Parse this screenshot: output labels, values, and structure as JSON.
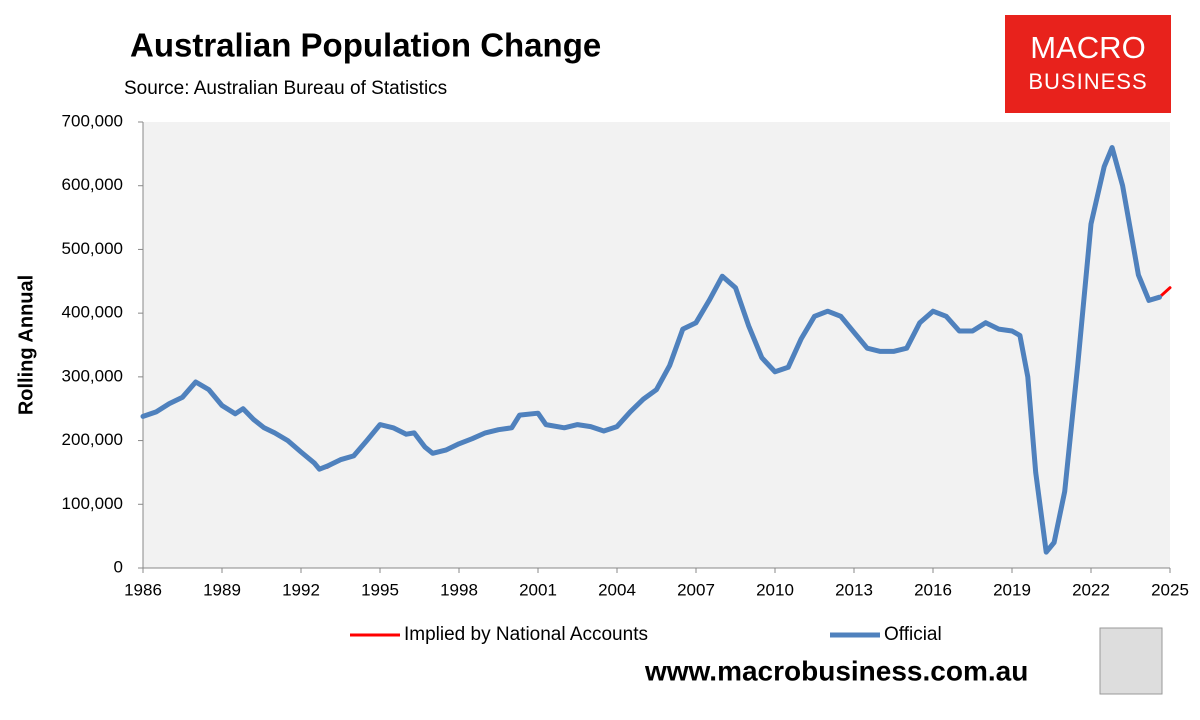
{
  "chart_data": {
    "type": "line",
    "title": "Australian Population Change",
    "subtitle": "Source: Australian Bureau of Statistics",
    "y_label": "Rolling Annual",
    "logo": [
      "MACRO",
      "BUSINESS"
    ],
    "footer": "www.macrobusiness.com.au",
    "legend": "bottom",
    "grid": false,
    "xlim": [
      1986,
      2025
    ],
    "xticks": [
      1986,
      1989,
      1992,
      1995,
      1998,
      2001,
      2004,
      2007,
      2010,
      2013,
      2016,
      2019,
      2022,
      2025
    ],
    "ylim": [
      0,
      700000
    ],
    "yticks": [
      0,
      {
        "value": 100000,
        "label": "100,000"
      },
      {
        "value": 200000,
        "label": "200,000"
      },
      {
        "value": 300000,
        "label": "300,000"
      },
      {
        "value": 400000,
        "label": "400,000"
      },
      {
        "value": 500000,
        "label": "500,000"
      },
      {
        "value": 600000,
        "label": "600,000"
      },
      {
        "value": 700000,
        "label": "700,000"
      }
    ],
    "x": [
      1986,
      1986.5,
      1987,
      1987.5,
      1988,
      1988.5,
      1989,
      1989.5,
      1989.8,
      1990.2,
      1990.6,
      1991,
      1991.5,
      1992,
      1992.5,
      1992.7,
      1993,
      1993.5,
      1994,
      1994.5,
      1995,
      1995.5,
      1996,
      1996.3,
      1996.7,
      1997,
      1997.5,
      1998,
      1998.5,
      1999,
      1999.5,
      2000,
      2000.3,
      2001,
      2001.3,
      2002,
      2002.5,
      2003,
      2003.5,
      2004,
      2004.5,
      2005,
      2005.5,
      2006,
      2006.5,
      2007,
      2007.5,
      2008,
      2008.5,
      2009,
      2009.5,
      2010,
      2010.5,
      2011,
      2011.5,
      2012,
      2012.5,
      2013,
      2013.5,
      2014,
      2014.5,
      2015,
      2015.5,
      2016,
      2016.5,
      2017,
      2017.5,
      2018,
      2018.5,
      2019,
      2019.3,
      2019.6,
      2019.9,
      2020.3,
      2020.6,
      2021,
      2021.5,
      2022,
      2022.5,
      2022.8,
      2023.2,
      2023.8,
      2024.2,
      2024.6,
      2025
    ],
    "series": [
      {
        "name": "Implied by National Accounts",
        "color": "#ff0000",
        "width": 3,
        "values": [
          238000,
          245000,
          258000,
          268000,
          292000,
          280000,
          255000,
          242000,
          250000,
          233000,
          220000,
          212000,
          200000,
          182000,
          165000,
          155000,
          158000,
          170000,
          176000,
          200000,
          225000,
          220000,
          210000,
          212000,
          190000,
          180000,
          185000,
          195000,
          203000,
          212000,
          217000,
          220000,
          240000,
          243000,
          225000,
          220000,
          225000,
          222000,
          215000,
          222000,
          245000,
          265000,
          280000,
          318000,
          375000,
          385000,
          420000,
          458000,
          440000,
          380000,
          330000,
          308000,
          315000,
          360000,
          395000,
          403000,
          395000,
          370000,
          345000,
          340000,
          340000,
          345000,
          385000,
          403000,
          395000,
          372000,
          372000,
          385000,
          375000,
          372000,
          365000,
          300000,
          150000,
          25000,
          40000,
          120000,
          320000,
          540000,
          630000,
          660000,
          600000,
          460000,
          420000,
          425000,
          440000
        ]
      },
      {
        "name": "Official",
        "color": "#4f81bd",
        "width": 5,
        "values": [
          238000,
          245000,
          258000,
          268000,
          292000,
          280000,
          255000,
          242000,
          250000,
          233000,
          220000,
          212000,
          200000,
          182000,
          165000,
          155000,
          160000,
          170000,
          176000,
          200000,
          225000,
          220000,
          210000,
          212000,
          190000,
          180000,
          185000,
          195000,
          203000,
          212000,
          217000,
          220000,
          240000,
          243000,
          225000,
          220000,
          225000,
          222000,
          215000,
          222000,
          245000,
          265000,
          280000,
          318000,
          375000,
          385000,
          420000,
          458000,
          440000,
          380000,
          330000,
          308000,
          315000,
          360000,
          395000,
          403000,
          395000,
          370000,
          345000,
          340000,
          340000,
          345000,
          385000,
          403000,
          395000,
          372000,
          372000,
          385000,
          375000,
          372000,
          365000,
          300000,
          150000,
          25000,
          40000,
          120000,
          320000,
          540000,
          630000,
          660000,
          600000,
          460000,
          420000,
          425000,
          null
        ]
      }
    ]
  }
}
